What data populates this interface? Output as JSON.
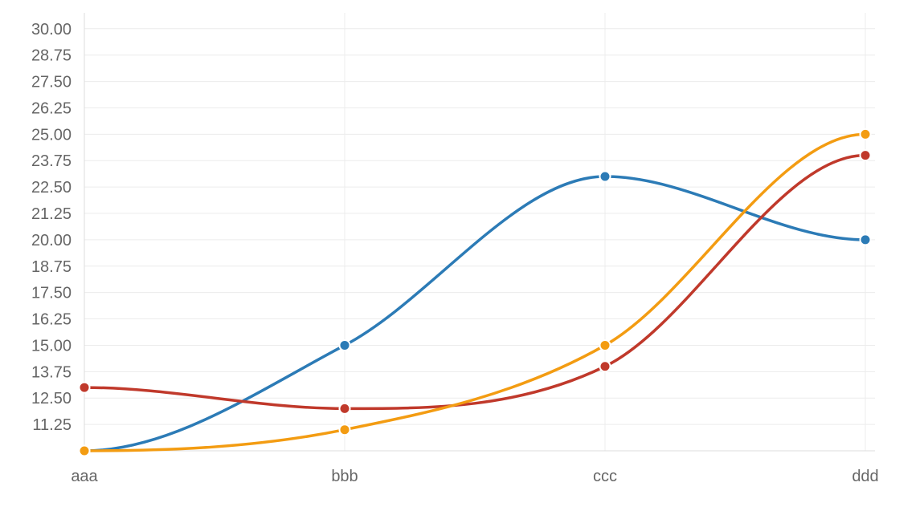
{
  "chart_data": {
    "type": "line",
    "smooth": true,
    "categories": [
      "aaa",
      "bbb",
      "ccc",
      "ddd"
    ],
    "y_ticks": [
      11.25,
      12.5,
      13.75,
      15,
      16.25,
      17.5,
      18.75,
      20,
      21.25,
      22.5,
      23.75,
      25,
      26.25,
      27.5,
      28.75,
      30
    ],
    "ylim": [
      10,
      30.6
    ],
    "grid": true,
    "legend": "none",
    "series": [
      {
        "values": [
          10,
          15,
          23,
          20
        ],
        "color": "#2c7bb6"
      },
      {
        "values": [
          13,
          12,
          14,
          24
        ],
        "color": "#c0392b"
      },
      {
        "values": [
          10,
          11,
          15,
          25
        ],
        "color": "#f39c12"
      }
    ]
  }
}
